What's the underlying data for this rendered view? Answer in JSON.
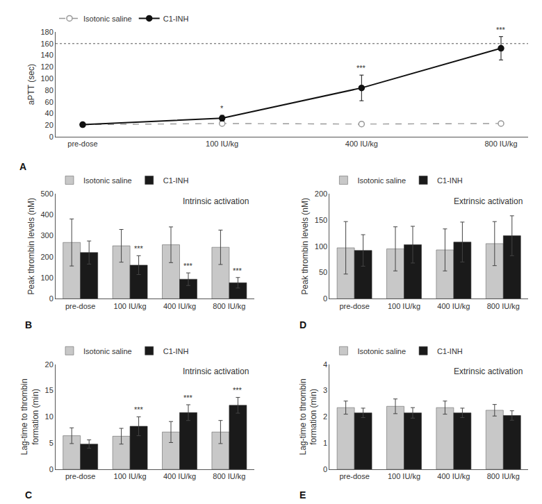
{
  "chart_data": [
    {
      "type": "line",
      "panel_label": "A",
      "categories": [
        "pre-dose",
        "100 IU/kg",
        "400 IU/kg",
        "800 IU/kg"
      ],
      "ylabel": "aPTT (sec)",
      "ylim": [
        0,
        180
      ],
      "yticks": [
        0,
        20,
        40,
        60,
        80,
        100,
        120,
        140,
        160,
        180
      ],
      "grid": false,
      "legend": "top",
      "hline": 160,
      "series": [
        {
          "name": "Isotonic saline",
          "color": "#999999",
          "values": [
            21,
            23,
            22,
            23
          ],
          "errors": [
            2,
            3,
            2,
            2
          ],
          "marker": "open circle",
          "line_style": "dashed"
        },
        {
          "name": "C1-INH",
          "color": "#111111",
          "values": [
            21,
            32,
            84,
            152
          ],
          "errors": [
            2,
            5,
            22,
            20
          ],
          "marker": "circle",
          "line_style": "solid"
        }
      ],
      "annotations": [
        {
          "category": "100 IU/kg",
          "series": "C1-INH",
          "text": "*"
        },
        {
          "category": "400 IU/kg",
          "series": "C1-INH",
          "text": "***"
        },
        {
          "category": "800 IU/kg",
          "series": "C1-INH",
          "text": "***"
        }
      ]
    },
    {
      "type": "bar",
      "panel_label": "B",
      "title": "Intrinsic activation",
      "categories": [
        "pre-dose",
        "100 IU/kg",
        "400 IU/kg",
        "800 IU/kg"
      ],
      "ylabel": "Peak thrombin levels (nM)",
      "ylim": [
        0,
        500
      ],
      "yticks": [
        0,
        100,
        200,
        300,
        400,
        500
      ],
      "grid": false,
      "legend": "top",
      "series": [
        {
          "name": "Isotonic saline",
          "color": "#c8c8c8",
          "values": [
            268,
            252,
            257,
            245
          ],
          "errors": [
            112,
            78,
            85,
            82
          ]
        },
        {
          "name": "C1-INH",
          "color": "#1a1a1a",
          "values": [
            220,
            160,
            93,
            76
          ],
          "errors": [
            55,
            45,
            30,
            25
          ]
        }
      ],
      "annotations": [
        {
          "category": "100 IU/kg",
          "series": "C1-INH",
          "text": "***"
        },
        {
          "category": "400 IU/kg",
          "series": "C1-INH",
          "text": "***"
        },
        {
          "category": "800 IU/kg",
          "series": "C1-INH",
          "text": "***"
        }
      ]
    },
    {
      "type": "bar",
      "panel_label": "C",
      "title": "Intrinsic activation",
      "categories": [
        "pre-dose",
        "100 IU/kg",
        "400 IU/kg",
        "800 IU/kg"
      ],
      "ylabel": "Lag-time to thrombin\nformation (min)",
      "ylim": [
        0,
        20
      ],
      "yticks": [
        0,
        5,
        10,
        15,
        20
      ],
      "grid": false,
      "legend": "top",
      "series": [
        {
          "name": "Isotonic saline",
          "color": "#c8c8c8",
          "values": [
            6.4,
            6.3,
            7.1,
            7.1
          ],
          "errors": [
            1.5,
            1.5,
            2.0,
            2.2
          ]
        },
        {
          "name": "C1-INH",
          "color": "#1a1a1a",
          "values": [
            4.8,
            8.2,
            10.8,
            12.2
          ],
          "errors": [
            0.8,
            1.8,
            1.5,
            1.5
          ]
        }
      ],
      "annotations": [
        {
          "category": "100 IU/kg",
          "series": "C1-INH",
          "text": "***"
        },
        {
          "category": "400 IU/kg",
          "series": "C1-INH",
          "text": "***"
        },
        {
          "category": "800 IU/kg",
          "series": "C1-INH",
          "text": "***"
        }
      ]
    },
    {
      "type": "bar",
      "panel_label": "D",
      "title": "Extrinsic activation",
      "categories": [
        "pre-dose",
        "100 IU/kg",
        "400 IU/kg",
        "800 IU/kg"
      ],
      "ylabel": "Peak thrombin levels (nM)",
      "ylim": [
        0,
        200
      ],
      "yticks": [
        0,
        50,
        100,
        150,
        200
      ],
      "grid": false,
      "legend": "top",
      "series": [
        {
          "name": "Isotonic saline",
          "color": "#c8c8c8",
          "values": [
            97,
            95,
            93,
            105
          ],
          "errors": [
            50,
            42,
            40,
            42
          ]
        },
        {
          "name": "C1-INH",
          "color": "#1a1a1a",
          "values": [
            92,
            103,
            108,
            120
          ],
          "errors": [
            30,
            35,
            38,
            38
          ]
        }
      ]
    },
    {
      "type": "bar",
      "panel_label": "E",
      "title": "Extrinsic activation",
      "categories": [
        "pre-dose",
        "100 IU/kg",
        "400 IU/kg",
        "800 IU/kg"
      ],
      "ylabel": "Lag-time to thrombin\nformation (min)",
      "ylim": [
        0,
        4
      ],
      "yticks": [
        0,
        1,
        2,
        3,
        4
      ],
      "grid": false,
      "legend": "top",
      "series": [
        {
          "name": "Isotonic saline",
          "color": "#c8c8c8",
          "values": [
            2.35,
            2.4,
            2.35,
            2.25
          ],
          "errors": [
            0.25,
            0.28,
            0.25,
            0.22
          ]
        },
        {
          "name": "C1-INH",
          "color": "#1a1a1a",
          "values": [
            2.15,
            2.15,
            2.15,
            2.05
          ],
          "errors": [
            0.18,
            0.2,
            0.18,
            0.18
          ]
        }
      ]
    }
  ]
}
